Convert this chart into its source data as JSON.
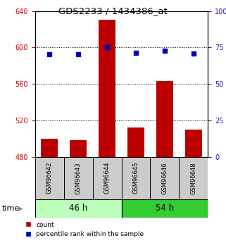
{
  "title": "GDS2233 / 1434386_at",
  "samples": [
    "GSM96642",
    "GSM96643",
    "GSM96644",
    "GSM96645",
    "GSM96646",
    "GSM96648"
  ],
  "group_labels": [
    "46 h",
    "54 h"
  ],
  "group_colors": [
    "#bbffbb",
    "#33cc33"
  ],
  "counts": [
    500,
    498,
    630,
    512,
    563,
    510
  ],
  "percentiles": [
    70.5,
    70.5,
    75.0,
    71.5,
    72.5,
    71.0
  ],
  "ylim_left": [
    480,
    640
  ],
  "ylim_right": [
    0,
    100
  ],
  "yticks_left": [
    480,
    520,
    560,
    600,
    640
  ],
  "yticks_right": [
    0,
    25,
    50,
    75,
    100
  ],
  "bar_color": "#bb0000",
  "dot_color": "#0000bb",
  "bar_bottom": 480,
  "label_count": "count",
  "label_percentile": "percentile rank within the sample",
  "left_tick_color": "#cc0000",
  "right_tick_color": "#2222bb"
}
